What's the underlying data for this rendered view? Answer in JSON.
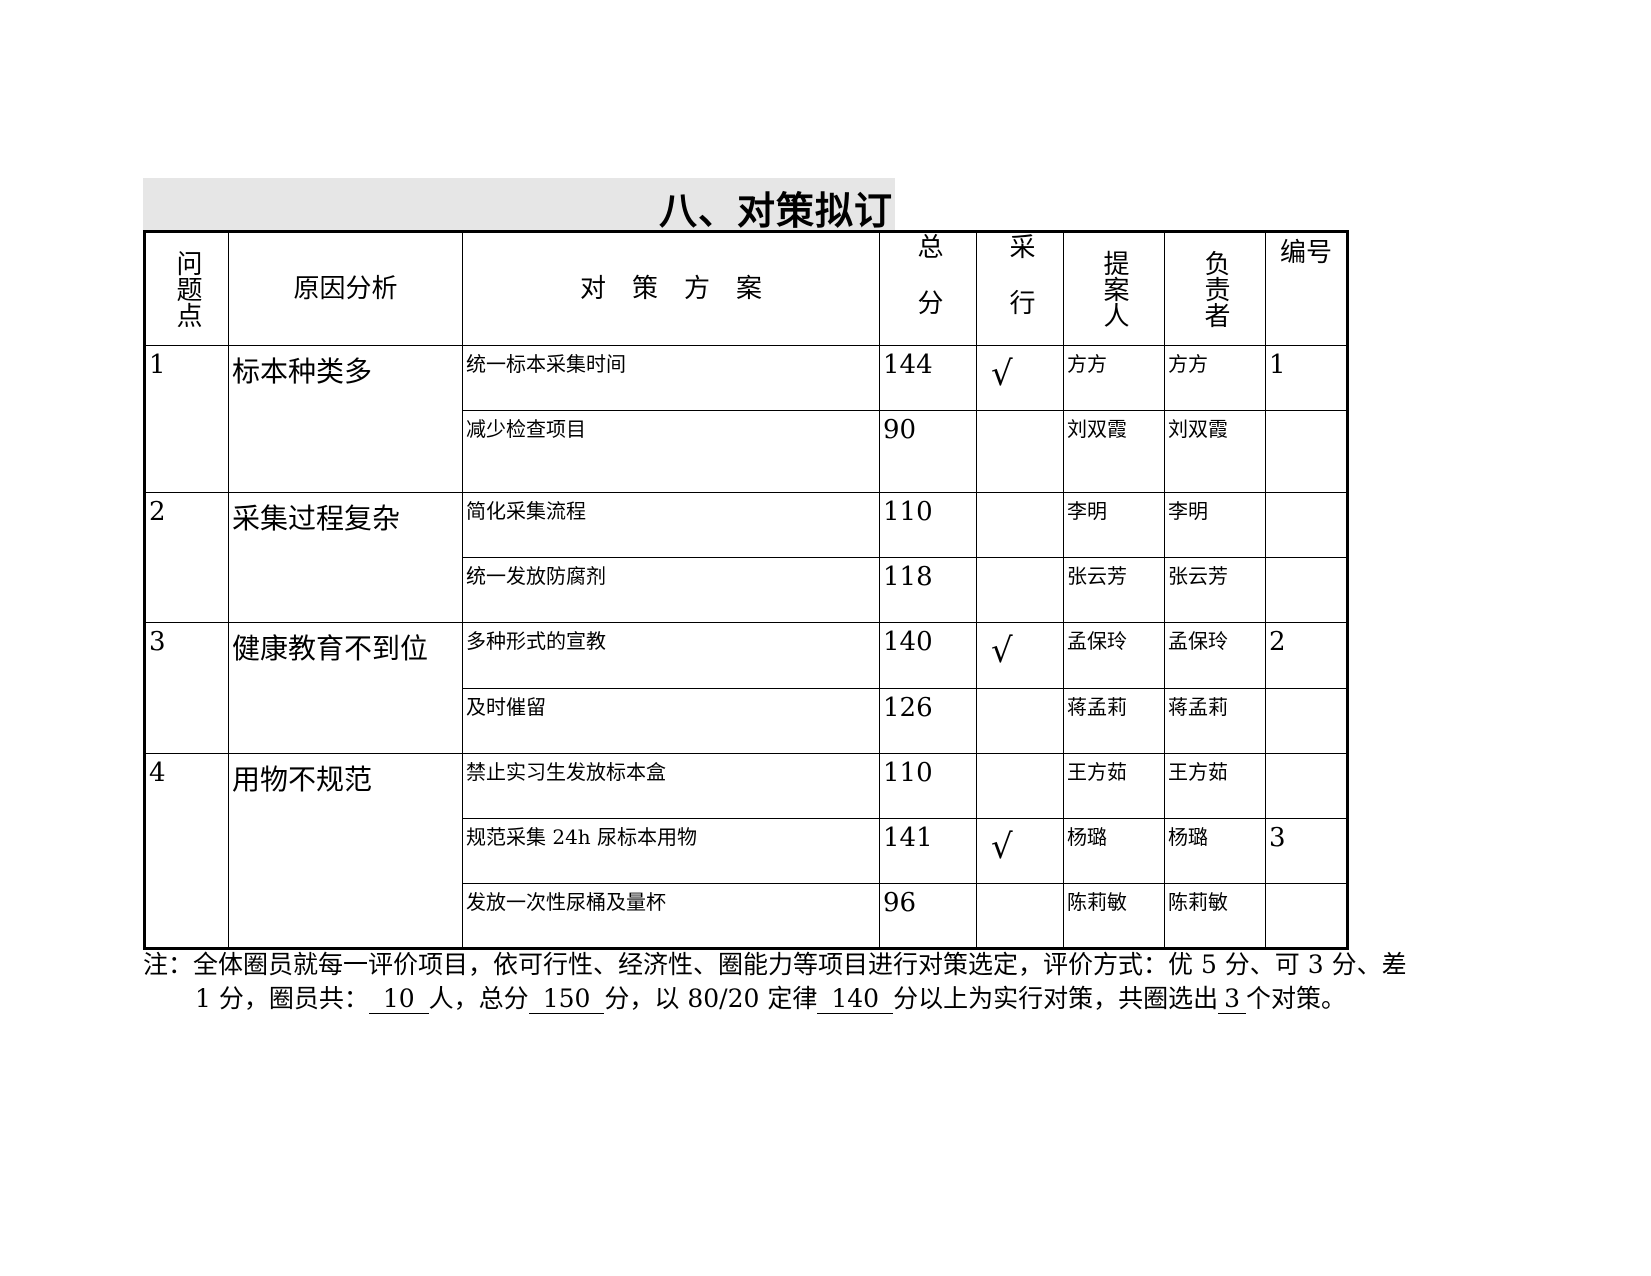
{
  "title": "八、对策拟订",
  "headers": {
    "problem": "问题点",
    "cause": "原因分析",
    "measure": "对　策　方　案",
    "score": "总分",
    "adopt": "采行",
    "proposer": "提案人",
    "owner": "负责者",
    "number": "编号"
  },
  "groups": [
    {
      "no": "1",
      "cause": "标本种类多",
      "rows": [
        {
          "measure": "统一标本采集时间",
          "score": "144",
          "adopt": "√",
          "proposer": "方方",
          "owner": "方方",
          "number": "1"
        },
        {
          "measure": "减少检查项目",
          "score": "90",
          "adopt": "",
          "proposer": "刘双霞",
          "owner": "刘双霞",
          "number": ""
        }
      ]
    },
    {
      "no": "2",
      "cause": "采集过程复杂",
      "rows": [
        {
          "measure": "简化采集流程",
          "score": "110",
          "adopt": "",
          "proposer": "李明",
          "owner": "李明",
          "number": ""
        },
        {
          "measure": "统一发放防腐剂",
          "score": "118",
          "adopt": "",
          "proposer": "张云芳",
          "owner": "张云芳",
          "number": ""
        }
      ]
    },
    {
      "no": "3",
      "cause": "健康教育不到位",
      "rows": [
        {
          "measure": "多种形式的宣教",
          "score": "140",
          "adopt": "√",
          "proposer": "孟保玲",
          "owner": "孟保玲",
          "number": "2"
        },
        {
          "measure": "及时催留",
          "score": "126",
          "adopt": "",
          "proposer": "蒋孟莉",
          "owner": "蒋孟莉",
          "number": ""
        }
      ]
    },
    {
      "no": "4",
      "cause": "用物不规范",
      "rows": [
        {
          "measure": "禁止实习生发放标本盒",
          "score": "110",
          "adopt": "",
          "proposer": "王方茹",
          "owner": "王方茹",
          "number": ""
        },
        {
          "measure": "规范采集 24h 尿标本用物",
          "score": "141",
          "adopt": "√",
          "proposer": "杨璐",
          "owner": "杨璐",
          "number": "3"
        },
        {
          "measure": "发放一次性尿桶及量杯",
          "score": "96",
          "adopt": "",
          "proposer": "陈莉敏",
          "owner": "陈莉敏",
          "number": ""
        }
      ]
    }
  ],
  "note": {
    "line1": "注：全体圈员就每一评价项目，依可行性、经济性、圈能力等项目进行对策选定，评价方式：优 5 分、可 3 分、差",
    "p1": "1 分，圈员共：",
    "members": "10",
    "p2": "人，总分",
    "total": "150",
    "p3": "分，以 80/20 定律",
    "threshold": "140",
    "p4": "分以上为实行对策，共圈选出",
    "selected": "3",
    "p5": "个对策。"
  }
}
